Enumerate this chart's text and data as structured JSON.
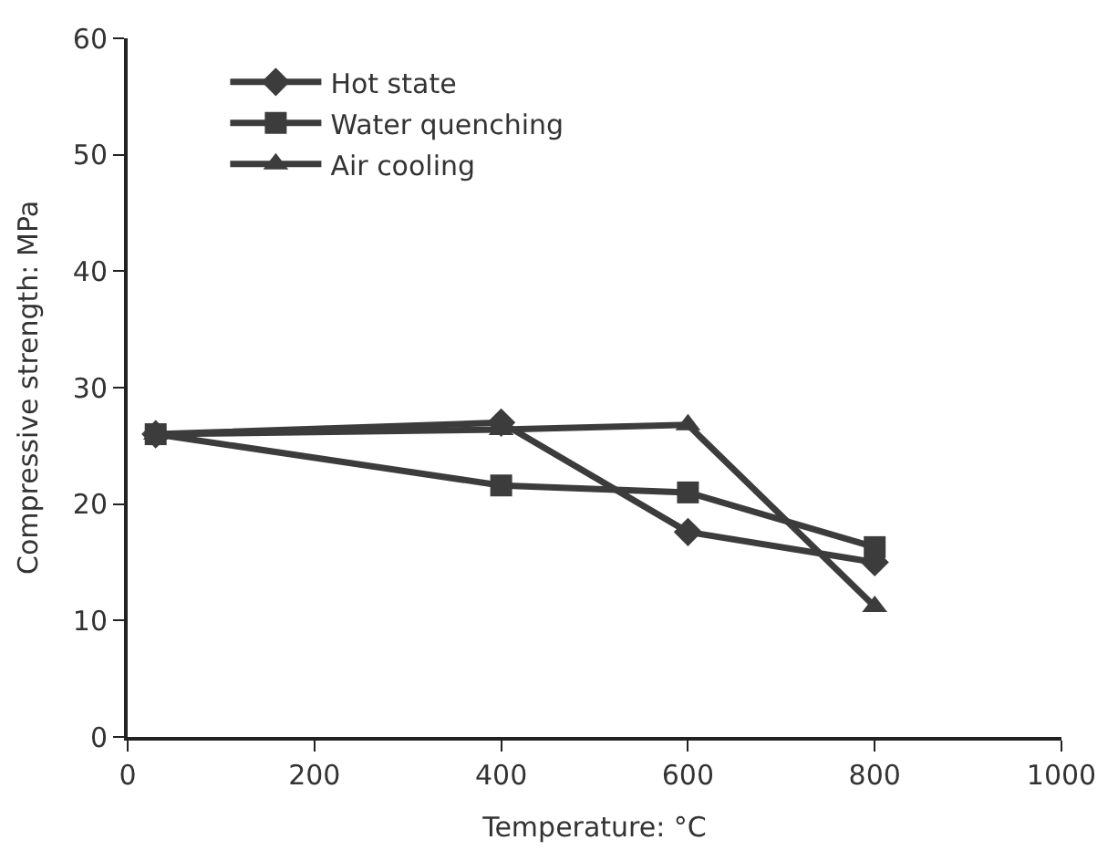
{
  "chart_data": {
    "type": "line",
    "xlabel": "Temperature: °C",
    "ylabel": "Compressive strength: MPa",
    "x": [
      30,
      400,
      600,
      800
    ],
    "series": [
      {
        "name": "Hot state",
        "color": "#3c3c3c",
        "marker": "diamond",
        "values": [
          26,
          27,
          17.6,
          15
        ]
      },
      {
        "name": "Water quenching",
        "color": "#3c3c3c",
        "marker": "square",
        "values": [
          26,
          21.6,
          21,
          16.3
        ]
      },
      {
        "name": "Air cooling",
        "color": "#3c3c3c",
        "marker": "triangle",
        "values": [
          26,
          26.4,
          26.8,
          11.2
        ]
      }
    ],
    "xlim": [
      0,
      1000
    ],
    "xticks": [
      0,
      200,
      400,
      600,
      800,
      1000
    ],
    "ylim": [
      0,
      60
    ],
    "yticks": [
      0,
      10,
      20,
      30,
      40,
      50,
      60
    ],
    "legend": "top left",
    "line_style": "solid"
  }
}
